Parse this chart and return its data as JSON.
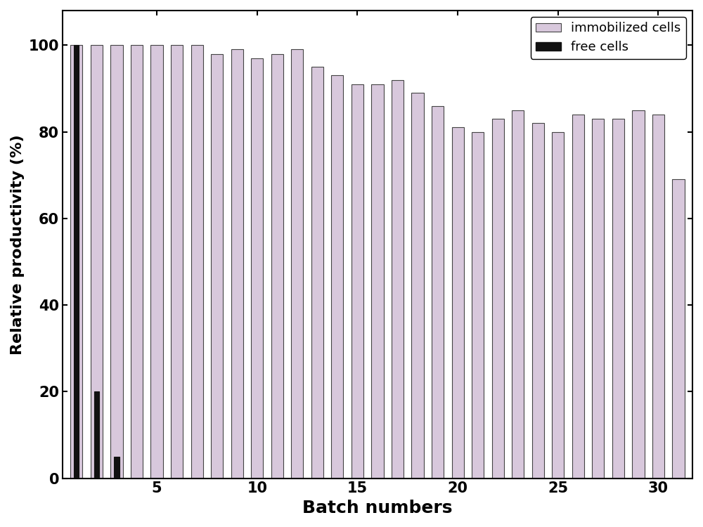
{
  "immobilized_values": [
    100,
    100,
    100,
    100,
    100,
    100,
    100,
    98,
    99,
    97,
    98,
    99,
    95,
    93,
    91,
    91,
    92,
    89,
    86,
    81,
    80,
    83,
    85,
    82,
    80,
    84,
    83,
    83,
    85,
    84,
    69
  ],
  "free_cells_values": [
    100,
    20,
    5,
    0,
    0,
    0,
    0,
    0,
    0,
    0,
    0,
    0,
    0,
    0,
    0,
    0,
    0,
    0,
    0,
    0,
    0,
    0,
    0,
    0,
    0,
    0,
    0,
    0,
    0,
    0,
    0
  ],
  "batch_count": 31,
  "immobilized_color": "#d8c8dc",
  "immobilized_edge_color": "#444444",
  "free_color": "#111111",
  "free_edge_color": "#111111",
  "bg_color": "#ffffff",
  "ylabel": "Relative productivity (%)",
  "xlabel": "Batch numbers",
  "ylim": [
    0,
    108
  ],
  "yticks": [
    0,
    20,
    40,
    60,
    80,
    100
  ],
  "xticks": [
    5,
    10,
    15,
    20,
    25,
    30
  ],
  "legend_immobilized": "immobilized cells",
  "legend_free": "free cells",
  "bar_width": 0.6,
  "free_bar_width": 0.25,
  "label_fontsize": 16,
  "tick_fontsize": 15,
  "legend_fontsize": 13
}
